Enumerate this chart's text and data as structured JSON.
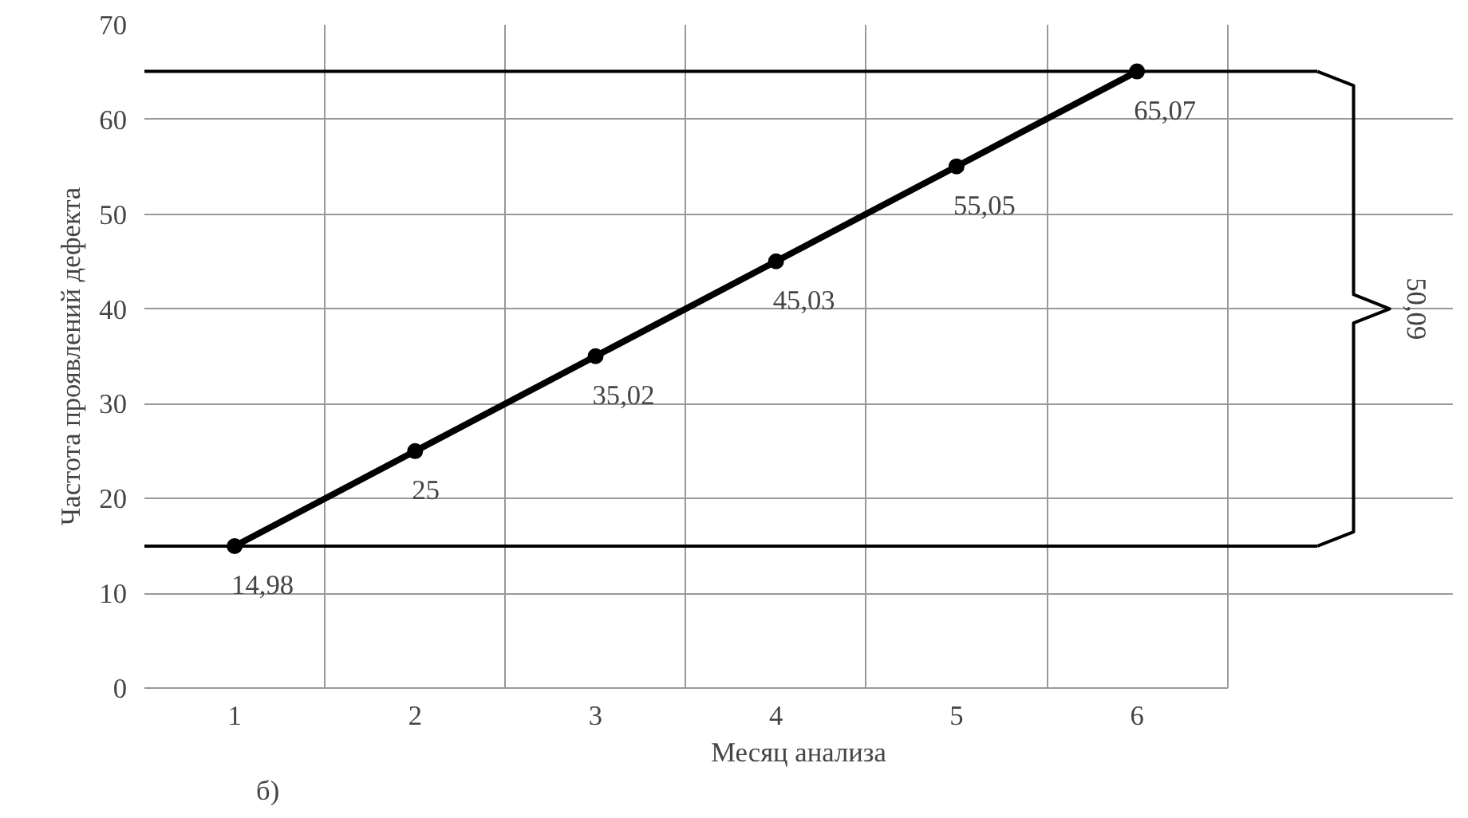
{
  "chart_data": {
    "type": "line",
    "xlabel": "Месяц анализа",
    "ylabel": "Частота проявлений дефекта",
    "categories": [
      "1",
      "2",
      "3",
      "4",
      "5",
      "6"
    ],
    "series": [
      {
        "color": "#000000",
        "values": [
          14.98,
          25,
          35.02,
          45.03,
          55.05,
          65.07
        ],
        "value_labels": [
          "14,98",
          "25",
          "35,02",
          "45,03",
          "55,05",
          "65,07"
        ]
      }
    ],
    "ylim": [
      0,
      70
    ],
    "yticks": [
      0,
      10,
      20,
      30,
      40,
      50,
      60,
      70
    ],
    "grid": true,
    "marker": "circle",
    "line_style": "solid",
    "ref_lines": [
      {
        "axis": "y",
        "value": 14.98,
        "label": null,
        "color": "#000000"
      },
      {
        "axis": "y",
        "value": 65.07,
        "label": null,
        "color": "#000000"
      }
    ],
    "annotations": [
      "б)",
      "50,09"
    ]
  }
}
